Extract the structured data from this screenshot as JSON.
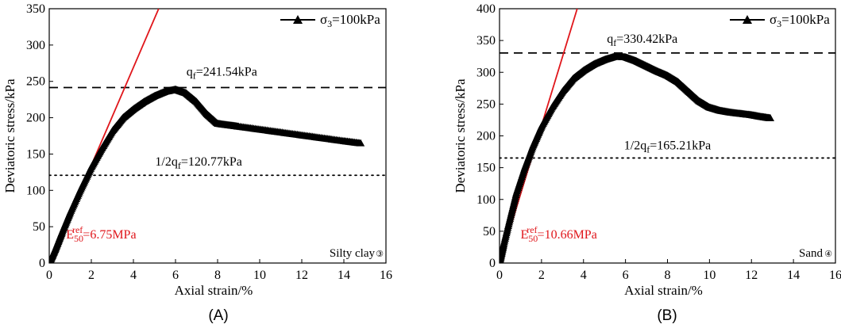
{
  "chart_data": [
    {
      "panel_label": "(A)",
      "type": "scatter",
      "xlabel": "Axial strain/%",
      "ylabel": "Deviatoric stress/kPa",
      "xlim": [
        0,
        16
      ],
      "ylim": [
        0,
        350
      ],
      "xticks": [
        0,
        2,
        4,
        6,
        8,
        10,
        12,
        14,
        16
      ],
      "yticks": [
        0,
        50,
        100,
        150,
        200,
        250,
        300,
        350
      ],
      "legend": {
        "label": "σ3=100kPa",
        "position": "top-right"
      },
      "soil_label": "Silty clay",
      "soil_marker": "③",
      "qf_label": "qf=241.54kPa",
      "half_qf_label": "1/2qf=120.77kPa",
      "e50_label": "E50ref=6.75MPa",
      "qf": 241.54,
      "half_qf": 120.77,
      "e50_line": {
        "x": [
          0,
          5.2
        ],
        "y": [
          0,
          350
        ]
      },
      "series": [
        {
          "name": "σ3=100kPa",
          "x": [
            0,
            0.3,
            0.6,
            1.0,
            1.5,
            2.0,
            2.5,
            3.0,
            3.5,
            4.0,
            4.5,
            5.0,
            5.5,
            6.0,
            6.5,
            7.0,
            7.5,
            8.0,
            8.5,
            9.0,
            10.0,
            11.0,
            12.0,
            13.0,
            14.0,
            14.8
          ],
          "y": [
            0,
            20,
            42,
            70,
            102,
            132,
            158,
            182,
            200,
            212,
            222,
            230,
            236,
            239,
            234,
            222,
            205,
            192,
            190,
            188,
            184,
            180,
            176,
            172,
            168,
            165
          ]
        }
      ]
    },
    {
      "panel_label": "(B)",
      "type": "scatter",
      "xlabel": "Axial strain/%",
      "ylabel": "Deviatoric stress/kPa",
      "xlim": [
        0,
        16
      ],
      "ylim": [
        0,
        400
      ],
      "xticks": [
        0,
        2,
        4,
        6,
        8,
        10,
        12,
        14,
        16
      ],
      "yticks": [
        0,
        50,
        100,
        150,
        200,
        250,
        300,
        350,
        400
      ],
      "legend": {
        "label": "σ3=100kPa",
        "position": "top-right"
      },
      "soil_label": "Sand",
      "soil_marker": "④",
      "qf_label": "qf=330.42kPa",
      "half_qf_label": "1/2qf=165.21kPa",
      "e50_label": "E50ref=10.66MPa",
      "qf": 330.42,
      "half_qf": 165.21,
      "e50_line": {
        "x": [
          0,
          3.7
        ],
        "y": [
          0,
          400
        ]
      },
      "series": [
        {
          "name": "σ3=100kPa",
          "x": [
            0,
            0.2,
            0.5,
            0.8,
            1.2,
            1.6,
            2.0,
            2.5,
            3.0,
            3.5,
            4.0,
            4.5,
            5.0,
            5.5,
            6.0,
            6.5,
            7.0,
            7.5,
            8.0,
            8.5,
            9.0,
            9.5,
            10.0,
            10.5,
            11.0,
            11.5,
            12.0,
            12.5,
            12.9
          ],
          "y": [
            0,
            30,
            70,
            110,
            150,
            185,
            215,
            245,
            270,
            290,
            303,
            313,
            320,
            325,
            324,
            318,
            310,
            302,
            295,
            285,
            270,
            255,
            245,
            240,
            237,
            235,
            233,
            230,
            228
          ]
        }
      ]
    }
  ]
}
